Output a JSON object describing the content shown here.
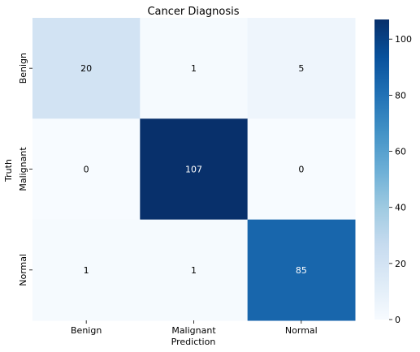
{
  "chart_data": {
    "type": "heatmap",
    "title": "Cancer Diagnosis",
    "xlabel": "Prediction",
    "ylabel": "Truth",
    "x_categories": [
      "Benign",
      "Malignant",
      "Normal"
    ],
    "y_categories": [
      "Benign",
      "Malignant",
      "Normal"
    ],
    "values": [
      [
        20,
        1,
        5
      ],
      [
        0,
        107,
        0
      ],
      [
        1,
        1,
        85
      ]
    ],
    "colormap": "Blues",
    "colorbar": {
      "min": 0,
      "max": 107,
      "ticks": [
        0,
        20,
        40,
        60,
        80,
        100
      ]
    },
    "colors": {
      "low": "#f7fbff",
      "high": "#08306b"
    }
  }
}
